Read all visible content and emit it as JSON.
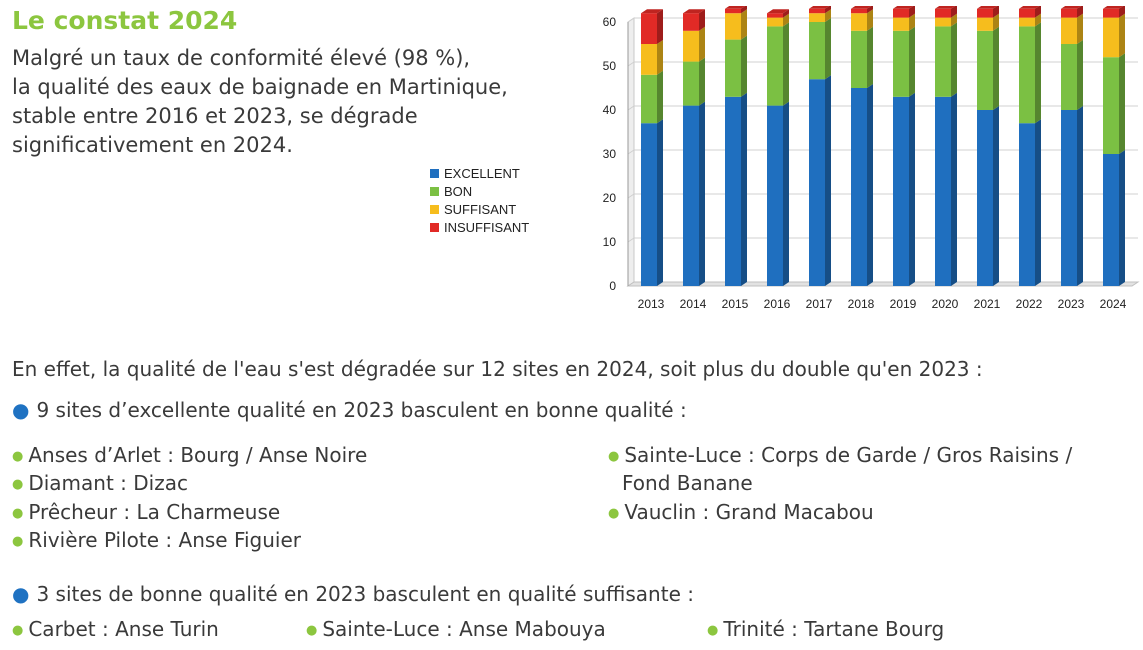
{
  "title": "Le constat 2024",
  "intro": [
    "Malgré un taux de conformité élevé (98 %),",
    "la qualité des eaux de baignade en Martinique,",
    "stable entre 2016 et 2023, se dégrade",
    "significativement en 2024."
  ],
  "chart_data": {
    "type": "bar",
    "stacked": true,
    "categories": [
      "2013",
      "2014",
      "2015",
      "2016",
      "2017",
      "2018",
      "2019",
      "2020",
      "2021",
      "2022",
      "2023",
      "2024"
    ],
    "series": [
      {
        "name": "EXCELLENT",
        "color": "#1f6fbf",
        "values": [
          37,
          41,
          43,
          41,
          47,
          45,
          43,
          43,
          40,
          37,
          40,
          30
        ]
      },
      {
        "name": "BON",
        "color": "#7bc043",
        "values": [
          11,
          10,
          13,
          18,
          13,
          13,
          15,
          16,
          18,
          22,
          15,
          22
        ]
      },
      {
        "name": "SUFFISANT",
        "color": "#f6bd1d",
        "values": [
          7,
          7,
          6,
          2,
          2,
          4,
          3,
          2,
          3,
          2,
          6,
          9
        ]
      },
      {
        "name": "INSUFFISANT",
        "color": "#e12a26",
        "values": [
          7,
          4,
          1,
          1,
          1,
          1,
          2,
          2,
          2,
          2,
          2,
          2
        ]
      }
    ],
    "ylim": [
      0,
      60
    ],
    "yticks": [
      "0",
      "10",
      "20",
      "30",
      "40",
      "50",
      "60"
    ],
    "grid": true,
    "legend_position": "left"
  },
  "text": {
    "effet": "En effet, la qualité de l'eau s'est dégradée sur 12 sites en 2024, soit plus du double qu'en 2023 :",
    "group1_head": "9 sites d’excellente qualité en 2023 basculent en bonne qualité :",
    "group1_sites": [
      "Anses d’Arlet : Bourg / Anse Noire",
      "Diamant : Dizac",
      "Prêcheur : La Charmeuse",
      "Rivière Pilote : Anse Figuier",
      "Sainte-Luce : Corps de Garde / Gros Raisins /",
      "Fond Banane",
      "Vauclin : Grand Macabou"
    ],
    "group2_head": "3 sites de bonne qualité en 2023 basculent en qualité suffisante :",
    "group2_sites": [
      "Carbet : Anse Turin",
      "Sainte-Luce : Anse Mabouya",
      "Trinité : Tartane Bourg"
    ]
  },
  "colors": {
    "accent_green": "#8cc63f",
    "accent_blue": "#1f72c2"
  }
}
